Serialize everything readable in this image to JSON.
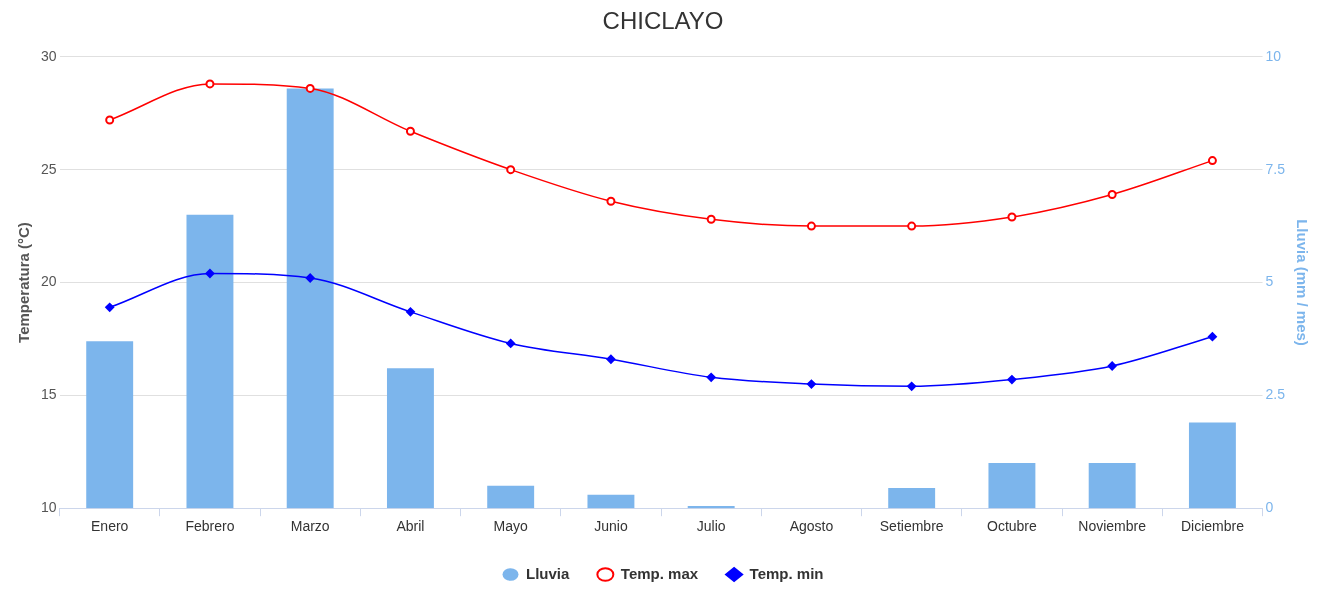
{
  "chart_data": {
    "type": "bar",
    "title": "CHICLAYO",
    "ylabel": "Temperatura (°C)",
    "y2label": "Lluvia (mm / mes)",
    "categories": [
      "Enero",
      "Febrero",
      "Marzo",
      "Abril",
      "Mayo",
      "Junio",
      "Julio",
      "Agosto",
      "Setiembre",
      "Octubre",
      "Noviembre",
      "Diciembre"
    ],
    "series": [
      {
        "name": "Lluvia",
        "axis": "y2",
        "color": "#7cb5ec",
        "values": [
          3.7,
          6.5,
          9.3,
          3.1,
          0.5,
          0.3,
          0.05,
          0,
          0.45,
          1.0,
          1.0,
          1.9
        ]
      },
      {
        "name": "Temp. max",
        "type": "line",
        "color": "#ff0000",
        "marker": "circle",
        "values": [
          27.2,
          28.8,
          28.6,
          26.7,
          25.0,
          23.6,
          22.8,
          22.5,
          22.5,
          22.9,
          23.9,
          25.4
        ]
      },
      {
        "name": "Temp. min",
        "type": "line",
        "color": "#0000ff",
        "marker": "diamond",
        "values": [
          18.9,
          20.4,
          20.2,
          18.7,
          17.3,
          16.6,
          15.8,
          15.5,
          15.4,
          15.7,
          16.3,
          17.6
        ]
      }
    ],
    "ylim": [
      10,
      30
    ],
    "yticks": [
      10,
      15,
      20,
      25,
      30
    ],
    "y2lim": [
      0,
      10
    ],
    "y2ticks": [
      0,
      2.5,
      5,
      7.5,
      10
    ],
    "grid": "y",
    "legend": "bottom"
  }
}
